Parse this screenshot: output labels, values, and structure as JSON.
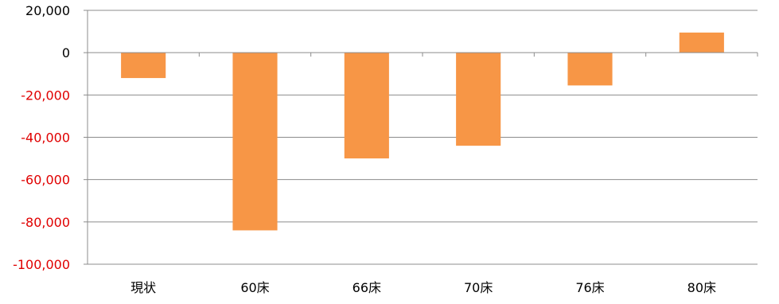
{
  "chart_data": {
    "type": "bar",
    "categories": [
      "現状",
      "60床",
      "66床",
      "70床",
      "76床",
      "80床"
    ],
    "values": [
      -12000,
      -84000,
      -50000,
      -44000,
      -15500,
      9500
    ],
    "ylim": [
      -100000,
      20000
    ],
    "y_ticks": [
      20000,
      0,
      -20000,
      -40000,
      -60000,
      -80000,
      -100000
    ],
    "y_tick_labels": [
      "20,000",
      "0",
      "-20,000",
      "-40,000",
      "-60,000",
      "-80,000",
      "-100,000"
    ],
    "grid": true,
    "legend": "none",
    "colors": {
      "bar": "#F79646",
      "positive_label": "#000000",
      "negative_label": "#E00000",
      "gridline": "#8C8C8C",
      "axis": "#8C8C8C"
    }
  }
}
